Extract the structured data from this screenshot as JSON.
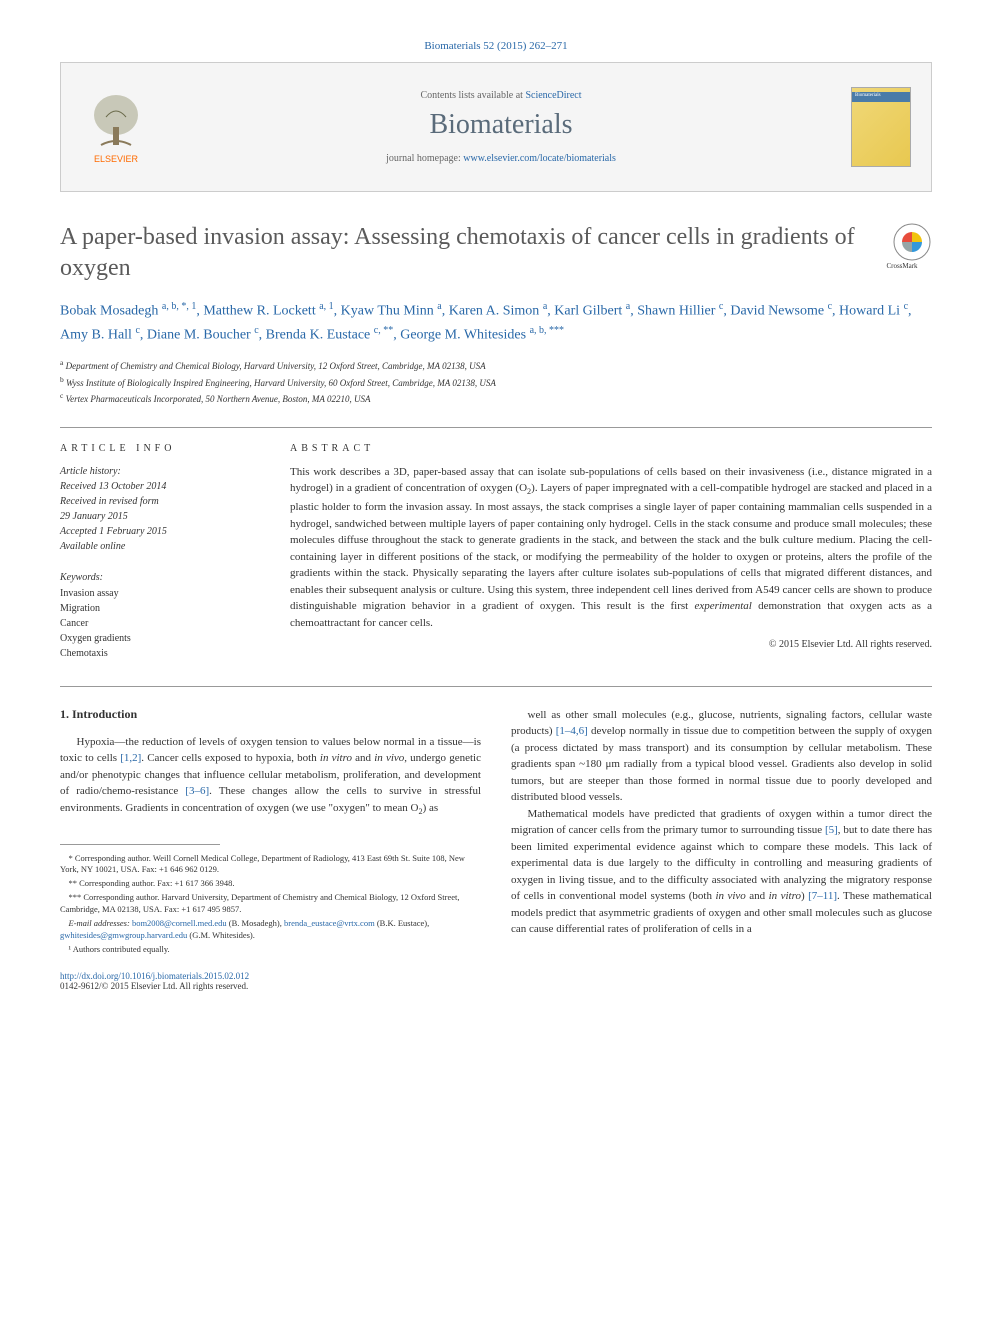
{
  "citation": "Biomaterials 52 (2015) 262–271",
  "header": {
    "contents_prefix": "Contents lists available at ",
    "contents_link": "ScienceDirect",
    "journal": "Biomaterials",
    "homepage_prefix": "journal homepage: ",
    "homepage_url": "www.elsevier.com/locate/biomaterials",
    "publisher": "ELSEVIER"
  },
  "crossmark_label": "CrossMark",
  "title": "A paper-based invasion assay: Assessing chemotaxis of cancer cells in gradients of oxygen",
  "authors_html": "Bobak Mosadegh <sup>a, b, *, 1</sup>, Matthew R. Lockett <sup>a, 1</sup>, Kyaw Thu Minn <sup>a</sup>, Karen A. Simon <sup>a</sup>, Karl Gilbert <sup>a</sup>, Shawn Hillier <sup>c</sup>, David Newsome <sup>c</sup>, Howard Li <sup>c</sup>, Amy B. Hall <sup>c</sup>, Diane M. Boucher <sup>c</sup>, Brenda K. Eustace <sup>c, **</sup>, George M. Whitesides <sup>a, b, ***</sup>",
  "affiliations": [
    {
      "sup": "a",
      "text": "Department of Chemistry and Chemical Biology, Harvard University, 12 Oxford Street, Cambridge, MA 02138, USA"
    },
    {
      "sup": "b",
      "text": "Wyss Institute of Biologically Inspired Engineering, Harvard University, 60 Oxford Street, Cambridge, MA 02138, USA"
    },
    {
      "sup": "c",
      "text": "Vertex Pharmaceuticals Incorporated, 50 Northern Avenue, Boston, MA 02210, USA"
    }
  ],
  "article_info_head": "ARTICLE INFO",
  "abstract_head": "ABSTRACT",
  "history": {
    "label": "Article history:",
    "received": "Received 13 October 2014",
    "revised": "Received in revised form",
    "revised_date": "29 January 2015",
    "accepted": "Accepted 1 February 2015",
    "online": "Available online"
  },
  "keywords_head": "Keywords:",
  "keywords": [
    "Invasion assay",
    "Migration",
    "Cancer",
    "Oxygen gradients",
    "Chemotaxis"
  ],
  "abstract": "This work describes a 3D, paper-based assay that can isolate sub-populations of cells based on their invasiveness (i.e., distance migrated in a hydrogel) in a gradient of concentration of oxygen (O₂). Layers of paper impregnated with a cell-compatible hydrogel are stacked and placed in a plastic holder to form the invasion assay. In most assays, the stack comprises a single layer of paper containing mammalian cells suspended in a hydrogel, sandwiched between multiple layers of paper containing only hydrogel. Cells in the stack consume and produce small molecules; these molecules diffuse throughout the stack to generate gradients in the stack, and between the stack and the bulk culture medium. Placing the cell-containing layer in different positions of the stack, or modifying the permeability of the holder to oxygen or proteins, alters the profile of the gradients within the stack. Physically separating the layers after culture isolates sub-populations of cells that migrated different distances, and enables their subsequent analysis or culture. Using this system, three independent cell lines derived from A549 cancer cells are shown to produce distinguishable migration behavior in a gradient of oxygen. This result is the first experimental demonstration that oxygen acts as a chemoattractant for cancer cells.",
  "copyright": "© 2015 Elsevier Ltd. All rights reserved.",
  "intro_head": "1. Introduction",
  "intro_p1": "Hypoxia—the reduction of levels of oxygen tension to values below normal in a tissue—is toxic to cells [1,2]. Cancer cells exposed to hypoxia, both in vitro and in vivo, undergo genetic and/or phenotypic changes that influence cellular metabolism, proliferation, and development of radio/chemo-resistance [3–6]. These changes allow the cells to survive in stressful environments. Gradients in concentration of oxygen (we use \"oxygen\" to mean O₂) as",
  "intro_p2": "well as other small molecules (e.g., glucose, nutrients, signaling factors, cellular waste products) [1–4,6] develop normally in tissue due to competition between the supply of oxygen (a process dictated by mass transport) and its consumption by cellular metabolism. These gradients span ~180 μm radially from a typical blood vessel. Gradients also develop in solid tumors, but are steeper than those formed in normal tissue due to poorly developed and distributed blood vessels.",
  "intro_p3": "Mathematical models have predicted that gradients of oxygen within a tumor direct the migration of cancer cells from the primary tumor to surrounding tissue [5], but to date there has been limited experimental evidence against which to compare these models. This lack of experimental data is due largely to the difficulty in controlling and measuring gradients of oxygen in living tissue, and to the difficulty associated with analyzing the migratory response of cells in conventional model systems (both in vivo and in vitro) [7–11]. These mathematical models predict that asymmetric gradients of oxygen and other small molecules such as glucose can cause differential rates of proliferation of cells in a",
  "footnotes": {
    "c1": "* Corresponding author. Weill Cornell Medical College, Department of Radiology, 413 East 69th St. Suite 108, New York, NY 10021, USA. Fax: +1 646 962 0129.",
    "c2": "** Corresponding author. Fax: +1 617 366 3948.",
    "c3": "*** Corresponding author. Harvard University, Department of Chemistry and Chemical Biology, 12 Oxford Street, Cambridge, MA 02138, USA. Fax: +1 617 495 9857.",
    "emails_label": "E-mail addresses: ",
    "email1": "bom2008@cornell.med.edu",
    "email1_who": " (B. Mosadegh), ",
    "email2": "brenda_eustace@vrtx.com",
    "email2_who": " (B.K. Eustace), ",
    "email3": "gwhitesides@gmwgroup.harvard.edu",
    "email3_who": " (G.M. Whitesides).",
    "equal": "¹ Authors contributed equally."
  },
  "doi": "http://dx.doi.org/10.1016/j.biomaterials.2015.02.012",
  "issn": "0142-9612/© 2015 Elsevier Ltd. All rights reserved.",
  "links": {
    "ref12": "[1,2]",
    "ref36": "[3–6]",
    "ref146": "[1–4,6]",
    "ref5": "[5]",
    "ref711": "[7–11]"
  },
  "colors": {
    "link": "#2968a8",
    "text": "#333333",
    "title": "#5a5a5a",
    "journal": "#5a6b7a",
    "elsevier_orange": "#ff6a00"
  }
}
